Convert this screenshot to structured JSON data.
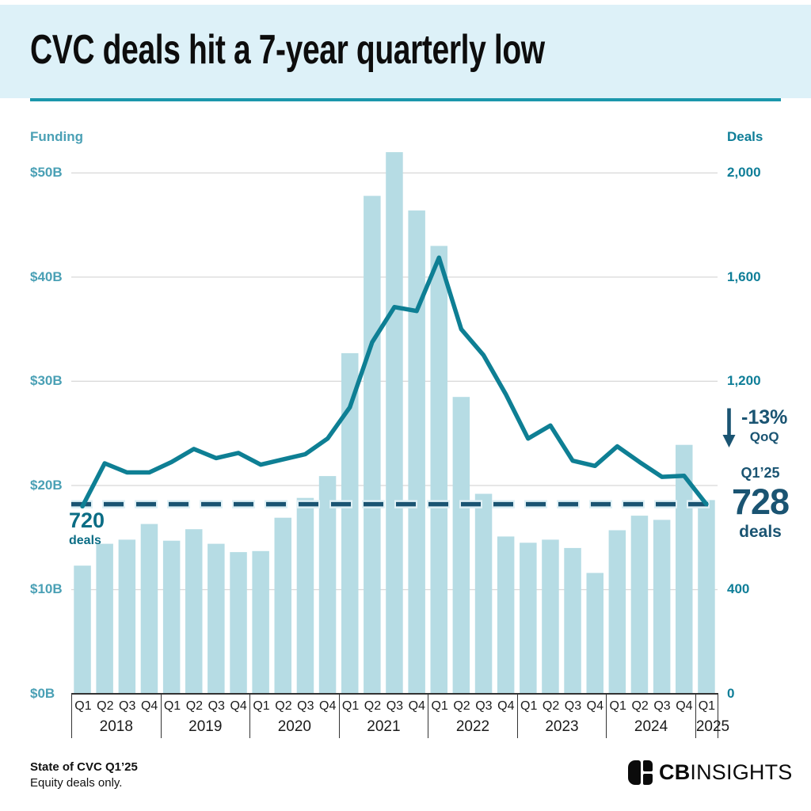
{
  "header": {
    "title": "CVC deals hit a 7-year quarterly low"
  },
  "annotations": {
    "start_value": "720",
    "start_unit": "deals",
    "qoq_change": "-13%",
    "qoq_label": "QoQ",
    "latest_period": "Q1’25",
    "latest_value": "728",
    "latest_unit": "deals"
  },
  "footer": {
    "source_line1": "State of CVC Q1’25",
    "source_line2": "Equity deals only.",
    "logo_text_bold": "CB",
    "logo_text_light": "INSIGHTS"
  },
  "colors": {
    "header_bg": "#ddf1f8",
    "accent_rule": "#1b97ac",
    "bar": "#b6dce4",
    "line": "#0e7f94",
    "dark": "#1a5472",
    "halo": "#dff0f5",
    "grid": "#d8d8d8",
    "left_axis_text": "#4aa0b5",
    "right_axis_text": "#0f7e98"
  },
  "chart_data": {
    "type": "combo",
    "title": "CVC deals hit a 7-year quarterly low",
    "x_groups": [
      {
        "year": "2018",
        "quarters": [
          "Q1",
          "Q2",
          "Q3",
          "Q4"
        ]
      },
      {
        "year": "2019",
        "quarters": [
          "Q1",
          "Q2",
          "Q3",
          "Q4"
        ]
      },
      {
        "year": "2020",
        "quarters": [
          "Q1",
          "Q2",
          "Q3",
          "Q4"
        ]
      },
      {
        "year": "2021",
        "quarters": [
          "Q1",
          "Q2",
          "Q3",
          "Q4"
        ]
      },
      {
        "year": "2022",
        "quarters": [
          "Q1",
          "Q2",
          "Q3",
          "Q4"
        ]
      },
      {
        "year": "2023",
        "quarters": [
          "Q1",
          "Q2",
          "Q3",
          "Q4"
        ]
      },
      {
        "year": "2024",
        "quarters": [
          "Q1",
          "Q2",
          "Q3",
          "Q4"
        ]
      },
      {
        "year": "2025",
        "quarters": [
          "Q1"
        ]
      }
    ],
    "series": [
      {
        "name": "Funding",
        "type": "bar",
        "axis": "left",
        "unit": "$B",
        "values": [
          12.3,
          14.4,
          14.8,
          16.3,
          14.7,
          15.8,
          14.4,
          13.6,
          13.7,
          16.9,
          18.8,
          20.9,
          32.7,
          47.8,
          52.0,
          46.4,
          43.0,
          28.5,
          19.2,
          15.1,
          14.5,
          14.8,
          14.0,
          11.6,
          15.7,
          17.1,
          16.7,
          23.9,
          18.6
        ]
      },
      {
        "name": "Deals",
        "type": "line",
        "axis": "right",
        "values": [
          720,
          885,
          850,
          850,
          890,
          940,
          905,
          925,
          880,
          900,
          920,
          980,
          1100,
          1350,
          1485,
          1470,
          1675,
          1400,
          1300,
          1150,
          980,
          1030,
          895,
          875,
          950,
          890,
          833,
          837,
          728
        ]
      }
    ],
    "left_axis": {
      "label": "Funding",
      "ticks": [
        "$50B",
        "$40B",
        "$30B",
        "$20B",
        "$10B",
        "$0B"
      ],
      "tick_values": [
        50,
        40,
        30,
        20,
        10,
        0
      ],
      "range": [
        0,
        52.2
      ],
      "grid": true
    },
    "right_axis": {
      "label": "Deals",
      "ticks": [
        "2,000",
        "1,600",
        "1,200",
        "400",
        "0"
      ],
      "tick_values": [
        2000,
        1600,
        1200,
        400,
        0
      ],
      "range": [
        0,
        2000
      ]
    },
    "reference_line": {
      "axis": "right",
      "value": 728,
      "style": "dashed"
    }
  }
}
